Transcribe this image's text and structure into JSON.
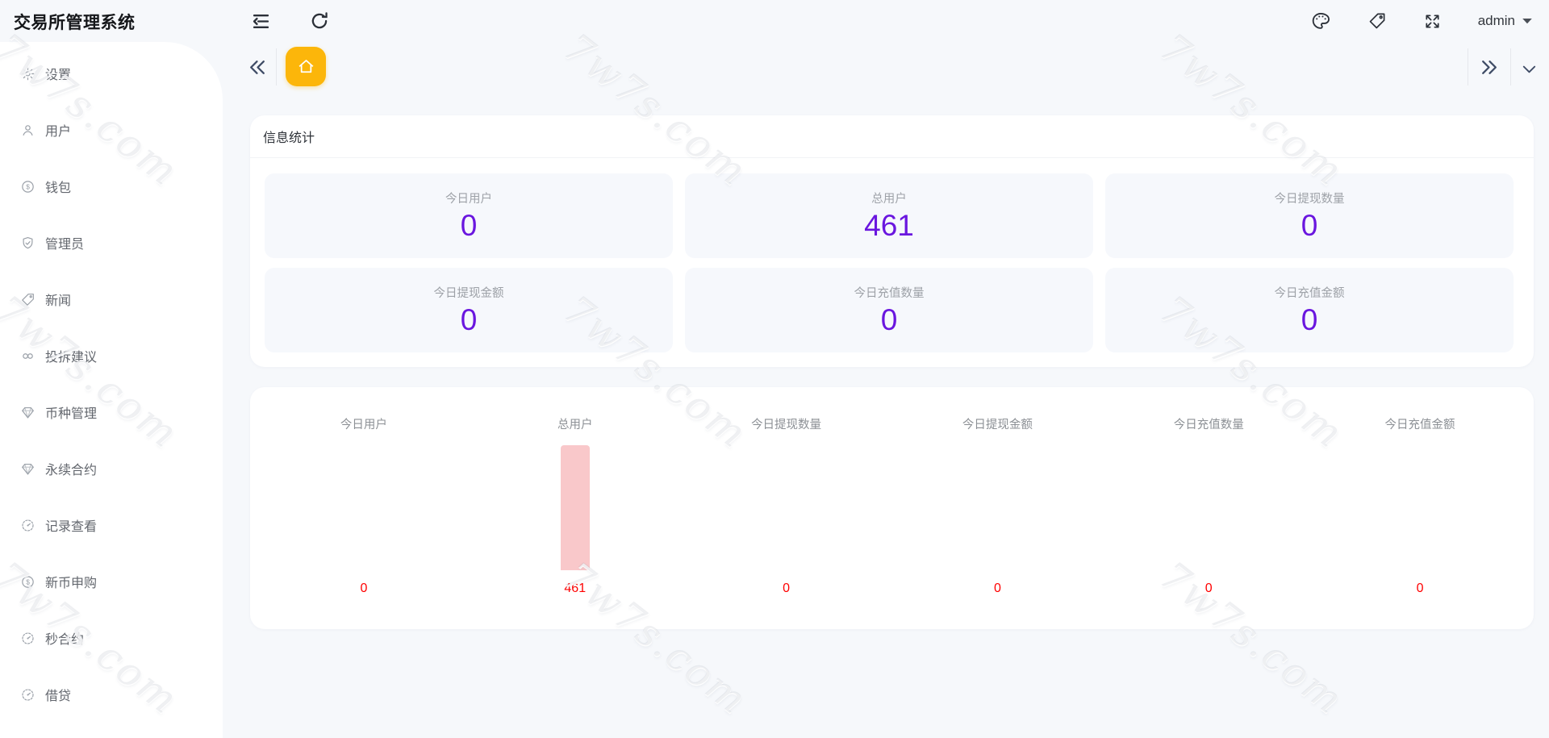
{
  "app_title": "交易所管理系统",
  "topbar": {
    "left_icons": [
      "menu-fold-icon",
      "refresh-icon"
    ],
    "right_icons": [
      "theme-palette-icon",
      "tag-icon",
      "fullscreen-icon"
    ],
    "user": {
      "name": "admin",
      "caret_icon": "caret-down-icon"
    }
  },
  "sidebar": {
    "items": [
      {
        "label": "设置",
        "icon": "gear"
      },
      {
        "label": "用户",
        "icon": "user"
      },
      {
        "label": "钱包",
        "icon": "coin"
      },
      {
        "label": "管理员",
        "icon": "shield"
      },
      {
        "label": "新闻",
        "icon": "tag"
      },
      {
        "label": "投拆建议",
        "icon": "link"
      },
      {
        "label": "币种管理",
        "icon": "gem"
      },
      {
        "label": "永续合约",
        "icon": "gem"
      },
      {
        "label": "记录查看",
        "icon": "gauge"
      },
      {
        "label": "新币申购",
        "icon": "coin"
      },
      {
        "label": "秒合约",
        "icon": "gauge"
      },
      {
        "label": "借贷",
        "icon": "gauge"
      }
    ]
  },
  "tabbar": {
    "collapse_left_icon": "double-chevron-left-icon",
    "home_tab_icon": "home-icon",
    "collapse_right_icon": "double-chevron-right-icon",
    "more_icon": "chevron-down-icon"
  },
  "stats_panel": {
    "title": "信息统计",
    "cards": [
      {
        "label": "今日用户",
        "value": "0"
      },
      {
        "label": "总用户",
        "value": "461"
      },
      {
        "label": "今日提现数量",
        "value": "0"
      },
      {
        "label": "今日提现金额",
        "value": "0"
      },
      {
        "label": "今日充值数量",
        "value": "0"
      },
      {
        "label": "今日充值金额",
        "value": "0"
      }
    ]
  },
  "chart_data": {
    "type": "bar",
    "categories": [
      "今日用户",
      "总用户",
      "今日提现数量",
      "今日提现金额",
      "今日充值数量",
      "今日充值金额"
    ],
    "values": [
      0,
      461,
      0,
      0,
      0,
      0
    ],
    "ylim": [
      0,
      461
    ],
    "title": "",
    "xlabel": "",
    "ylabel": "",
    "grid": false,
    "legend": false,
    "bar_color": "#f9c8ca",
    "value_label_color": "#ff0000"
  },
  "watermark": {
    "text": "7w7s.com"
  },
  "colors": {
    "accent_yellow": "#fcb60a",
    "value_purple": "#6a16df",
    "bar_pink": "#f9c8ca",
    "chart_value_red": "#ff0000",
    "sidebar_bg": "#ffffff",
    "page_bg": "#f6f8fb",
    "card_bg": "#f6f8fc"
  }
}
